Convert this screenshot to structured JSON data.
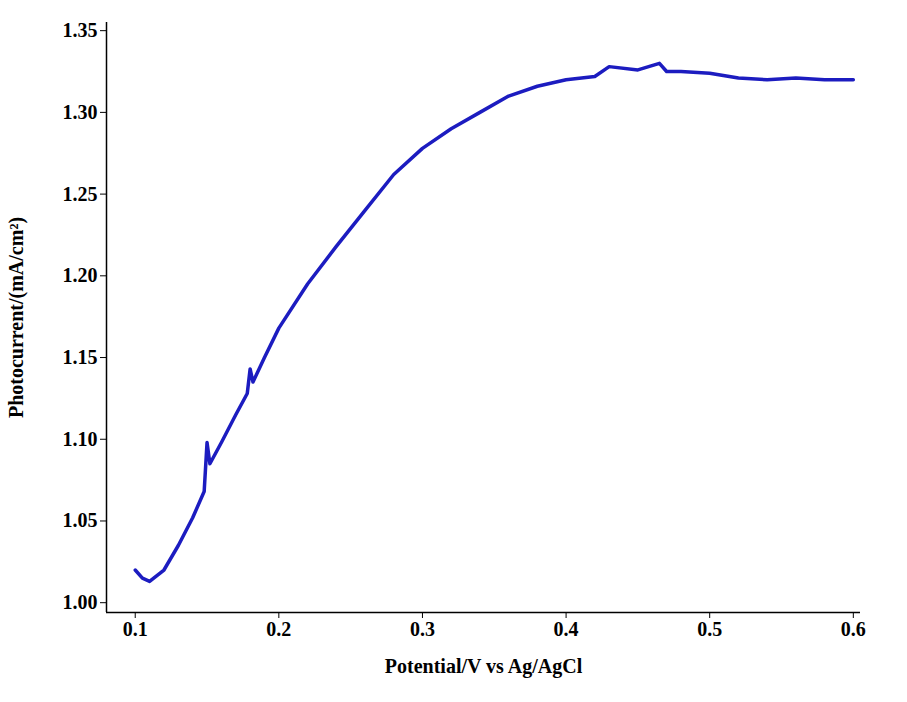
{
  "chart_data": {
    "type": "line",
    "x_label": "Potential/V vs Ag/AgCl",
    "y_label": "Photocurrent/(mA/cm²)",
    "color": "#1c1cc0",
    "x": [
      0.1,
      0.105,
      0.11,
      0.12,
      0.13,
      0.14,
      0.148,
      0.15,
      0.152,
      0.16,
      0.17,
      0.178,
      0.18,
      0.182,
      0.19,
      0.2,
      0.22,
      0.24,
      0.26,
      0.28,
      0.3,
      0.32,
      0.34,
      0.36,
      0.38,
      0.4,
      0.42,
      0.43,
      0.45,
      0.465,
      0.47,
      0.48,
      0.5,
      0.52,
      0.54,
      0.56,
      0.58,
      0.6
    ],
    "values": [
      1.02,
      1.015,
      1.013,
      1.02,
      1.035,
      1.052,
      1.068,
      1.098,
      1.085,
      1.098,
      1.115,
      1.128,
      1.143,
      1.135,
      1.15,
      1.168,
      1.195,
      1.218,
      1.24,
      1.262,
      1.278,
      1.29,
      1.3,
      1.31,
      1.316,
      1.32,
      1.322,
      1.328,
      1.326,
      1.33,
      1.325,
      1.325,
      1.324,
      1.321,
      1.32,
      1.321,
      1.32,
      1.32
    ],
    "xlim": [
      0.08,
      0.605
    ],
    "ylim": [
      0.994,
      1.355
    ],
    "xticks": [
      0.1,
      0.2,
      0.3,
      0.4,
      0.5,
      0.6
    ],
    "yticks": [
      {
        "value": 1.0,
        "label": "1.00"
      },
      1.05,
      {
        "value": 1.1,
        "label": "1.10"
      },
      1.15,
      {
        "value": 1.2,
        "label": "1.20"
      },
      1.25,
      {
        "value": 1.3,
        "label": "1.30"
      },
      1.35
    ],
    "grid": false
  }
}
